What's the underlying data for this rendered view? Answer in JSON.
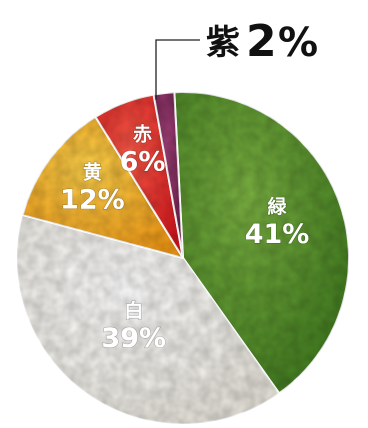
{
  "chart_data": {
    "type": "pie",
    "slices": [
      {
        "label": "緑",
        "value": 41,
        "display": "41%",
        "color": "#3f7a1e",
        "highlight": "#7cb342"
      },
      {
        "label": "白",
        "value": 39,
        "display": "39%",
        "color": "#e9e6dc",
        "highlight": "#ffffff"
      },
      {
        "label": "黄",
        "value": 12,
        "display": "12%",
        "color": "#f39a16",
        "highlight": "#ffd24a"
      },
      {
        "label": "赤",
        "value": 6,
        "display": "6%",
        "color": "#d8141c",
        "highlight": "#ff5a48"
      },
      {
        "label": "紫",
        "value": 2,
        "display": "2%",
        "color": "#6b1e4a",
        "highlight": "#a5427c"
      }
    ],
    "callout": {
      "label": "紫",
      "value_text": "2",
      "unit": "%"
    }
  }
}
